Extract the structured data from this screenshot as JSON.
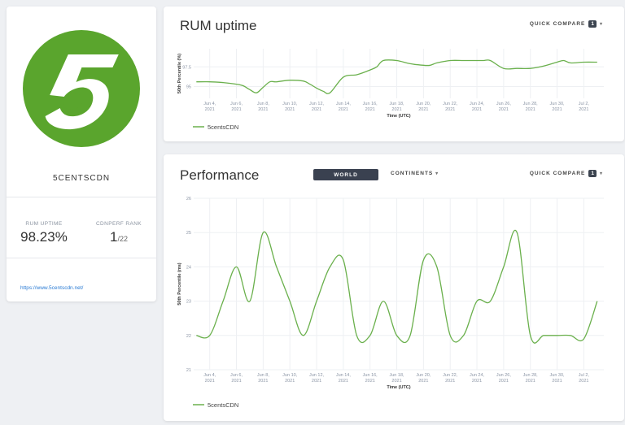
{
  "profile": {
    "logo_text": "5",
    "name": "5CENTSCDN",
    "rum_uptime_label": "RUM UPTIME",
    "rum_uptime_value": "98.23%",
    "rank_label": "CDNPERF RANK",
    "rank_value": "1",
    "rank_total": "/22",
    "link": "https://www.5centscdn.net/"
  },
  "colors": {
    "brand_green": "#5aa52d",
    "line_green": "#6ab04c",
    "dark": "#3a4150"
  },
  "uptime": {
    "title": "RUM uptime",
    "quick_compare_label": "QUICK COMPARE",
    "quick_compare_count": "1",
    "chart_data": {
      "type": "line",
      "ylabel": "50th Percentile (%)",
      "xlabel": "Time (UTC)",
      "y_ticks": [
        "97.5",
        "95"
      ],
      "ylim": [
        93.5,
        99.8
      ],
      "x_ticks": [
        [
          "Jun 4,",
          "2021"
        ],
        [
          "Jun 6,",
          "2021"
        ],
        [
          "Jun 8,",
          "2021"
        ],
        [
          "Jun 10,",
          "2021"
        ],
        [
          "Jun 12,",
          "2021"
        ],
        [
          "Jun 14,",
          "2021"
        ],
        [
          "Jun 16,",
          "2021"
        ],
        [
          "Jun 18,",
          "2021"
        ],
        [
          "Jun 20,",
          "2021"
        ],
        [
          "Jun 22,",
          "2021"
        ],
        [
          "Jun 24,",
          "2021"
        ],
        [
          "Jun 26,",
          "2021"
        ],
        [
          "Jun 28,",
          "2021"
        ],
        [
          "Jun 30,",
          "2021"
        ],
        [
          "Jul 2,",
          "2021"
        ]
      ],
      "xlim": [
        2.8,
        33.5
      ],
      "x_tick_days": [
        4,
        6,
        8,
        10,
        12,
        14,
        16,
        18,
        20,
        22,
        24,
        26,
        28,
        30,
        32
      ],
      "series": [
        {
          "name": "5centsCDN",
          "x": [
            3,
            4,
            5,
            6,
            6.5,
            7,
            7.5,
            8,
            8.5,
            9,
            10,
            11,
            11.5,
            12,
            12.5,
            13,
            14,
            15,
            16,
            16.5,
            17,
            18,
            19,
            20,
            20.5,
            21,
            22,
            23,
            24,
            24.5,
            25,
            26,
            27,
            28,
            29,
            30,
            30.5,
            31,
            32,
            33
          ],
          "values": [
            95.6,
            95.6,
            95.5,
            95.3,
            95.1,
            94.6,
            94.2,
            94.9,
            95.6,
            95.6,
            95.8,
            95.7,
            95.3,
            94.8,
            94.4,
            94.2,
            96.2,
            96.5,
            97.1,
            97.5,
            98.3,
            98.3,
            97.9,
            97.7,
            97.7,
            98.0,
            98.3,
            98.3,
            98.3,
            98.3,
            98.3,
            97.3,
            97.3,
            97.3,
            97.6,
            98.1,
            98.3,
            98.0,
            98.1,
            98.1
          ]
        }
      ]
    }
  },
  "performance": {
    "title": "Performance",
    "world_label": "WORLD",
    "continents_label": "CONTINENTS",
    "quick_compare_label": "QUICK COMPARE",
    "quick_compare_count": "1",
    "chart_data": {
      "type": "line",
      "ylabel": "50th Percentile (ms)",
      "xlabel": "Time (UTC)",
      "y_ticks": [
        26,
        25,
        24,
        23,
        22,
        21
      ],
      "ylim": [
        21,
        26
      ],
      "x_ticks": [
        [
          "Jun 4,",
          "2021"
        ],
        [
          "Jun 6,",
          "2021"
        ],
        [
          "Jun 8,",
          "2021"
        ],
        [
          "Jun 10,",
          "2021"
        ],
        [
          "Jun 12,",
          "2021"
        ],
        [
          "Jun 14,",
          "2021"
        ],
        [
          "Jun 16,",
          "2021"
        ],
        [
          "Jun 18,",
          "2021"
        ],
        [
          "Jun 20,",
          "2021"
        ],
        [
          "Jun 22,",
          "2021"
        ],
        [
          "Jun 24,",
          "2021"
        ],
        [
          "Jun 26,",
          "2021"
        ],
        [
          "Jun 28,",
          "2021"
        ],
        [
          "Jun 30,",
          "2021"
        ],
        [
          "Jul 2,",
          "2021"
        ]
      ],
      "xlim": [
        2.8,
        33.5
      ],
      "x_tick_days": [
        4,
        6,
        8,
        10,
        12,
        14,
        16,
        18,
        20,
        22,
        24,
        26,
        28,
        30,
        32
      ],
      "series": [
        {
          "name": "5centsCDN",
          "x": [
            3,
            4,
            5,
            6,
            7,
            8,
            9,
            10,
            11,
            12,
            13,
            14,
            15,
            16,
            17,
            18,
            19,
            20,
            21,
            22,
            23,
            24,
            25,
            26,
            27,
            28,
            29,
            30,
            31,
            32,
            33
          ],
          "values": [
            22,
            22,
            23,
            24,
            23,
            25,
            24,
            23,
            22,
            23,
            24,
            24.2,
            22,
            22,
            23,
            22,
            22,
            24.2,
            24,
            22,
            22,
            23,
            23,
            24,
            25,
            22,
            22,
            22,
            22,
            21.9,
            23
          ]
        }
      ]
    }
  }
}
